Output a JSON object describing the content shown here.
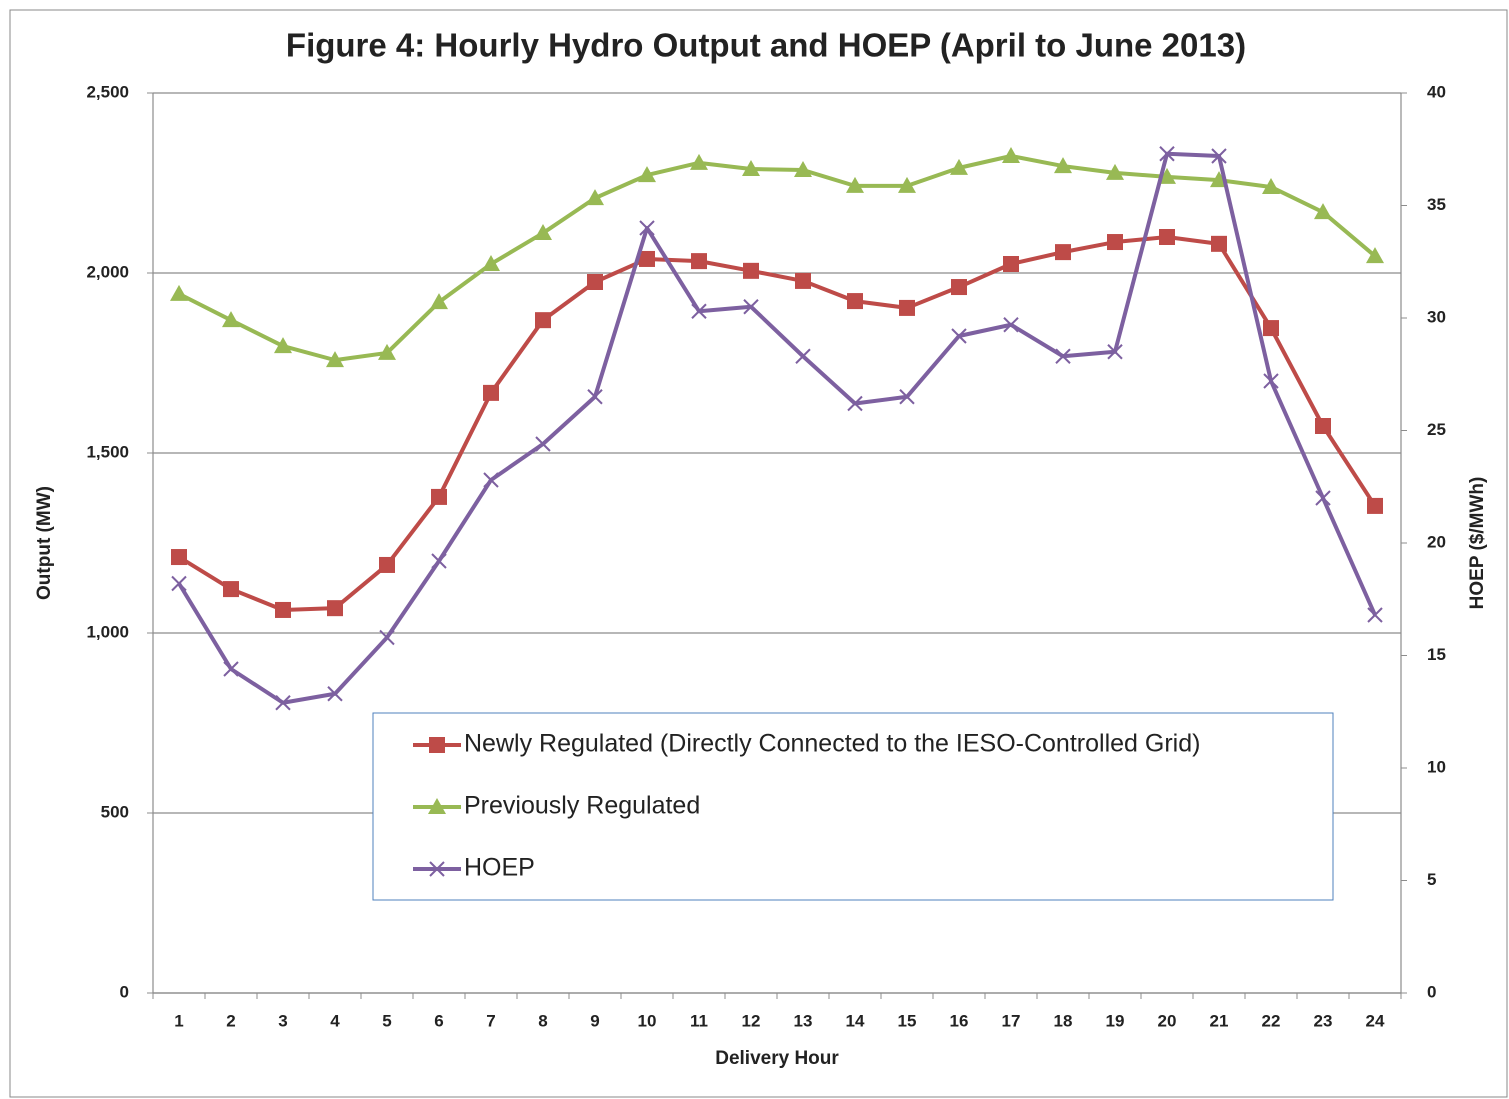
{
  "chart_data": {
    "type": "line",
    "title": "Figure 4: Hourly Hydro Output and HOEP (April to June 2013)",
    "x_label": "Delivery Hour",
    "y_label": "Output (MW)",
    "y2_label": "HOEP ($/MWh)",
    "categories": [
      "1",
      "2",
      "3",
      "4",
      "5",
      "6",
      "7",
      "8",
      "9",
      "10",
      "11",
      "12",
      "13",
      "14",
      "15",
      "16",
      "17",
      "18",
      "19",
      "20",
      "21",
      "22",
      "23",
      "24"
    ],
    "ylim": [
      0,
      2500
    ],
    "yticks": [
      0,
      500,
      {
        "value": 1000,
        "label": "1,000"
      },
      {
        "value": 1500,
        "label": "1,500"
      },
      {
        "value": 2000,
        "label": "2,000"
      },
      {
        "value": 2500,
        "label": "2,500"
      }
    ],
    "y2lim": [
      0,
      40
    ],
    "y2ticks": [
      0,
      5,
      10,
      15,
      20,
      25,
      30,
      35,
      40
    ],
    "grid": true,
    "legend": "center",
    "series": [
      {
        "name": "Newly Regulated (Directly Connected to the IESO-Controlled Grid)",
        "color": "#be4b48",
        "marker": "square",
        "values": [
          1211,
          1122,
          1064,
          1069,
          1189,
          1378,
          1667,
          1869,
          1975,
          2039,
          2033,
          2006,
          1978,
          1922,
          1903,
          1961,
          2025,
          2058,
          2086,
          2100,
          2081,
          1847,
          1575,
          1353
        ]
      },
      {
        "name": "Previously Regulated",
        "color": "#98b954",
        "marker": "triangle",
        "values": [
          1942,
          1869,
          1797,
          1758,
          1778,
          1919,
          2025,
          2111,
          2208,
          2272,
          2306,
          2289,
          2286,
          2242,
          2242,
          2292,
          2325,
          2297,
          2278,
          2267,
          2258,
          2239,
          2169,
          2047
        ]
      },
      {
        "name": "HOEP",
        "color": "#7d60a0",
        "marker": "x",
        "axis": "y2",
        "values": [
          18.2,
          14.4,
          12.9,
          13.3,
          15.8,
          19.2,
          22.8,
          24.4,
          26.5,
          34.0,
          30.3,
          30.5,
          28.3,
          26.2,
          26.5,
          29.2,
          29.7,
          28.3,
          28.5,
          37.3,
          37.2,
          27.2,
          22.0,
          16.8
        ]
      }
    ]
  }
}
